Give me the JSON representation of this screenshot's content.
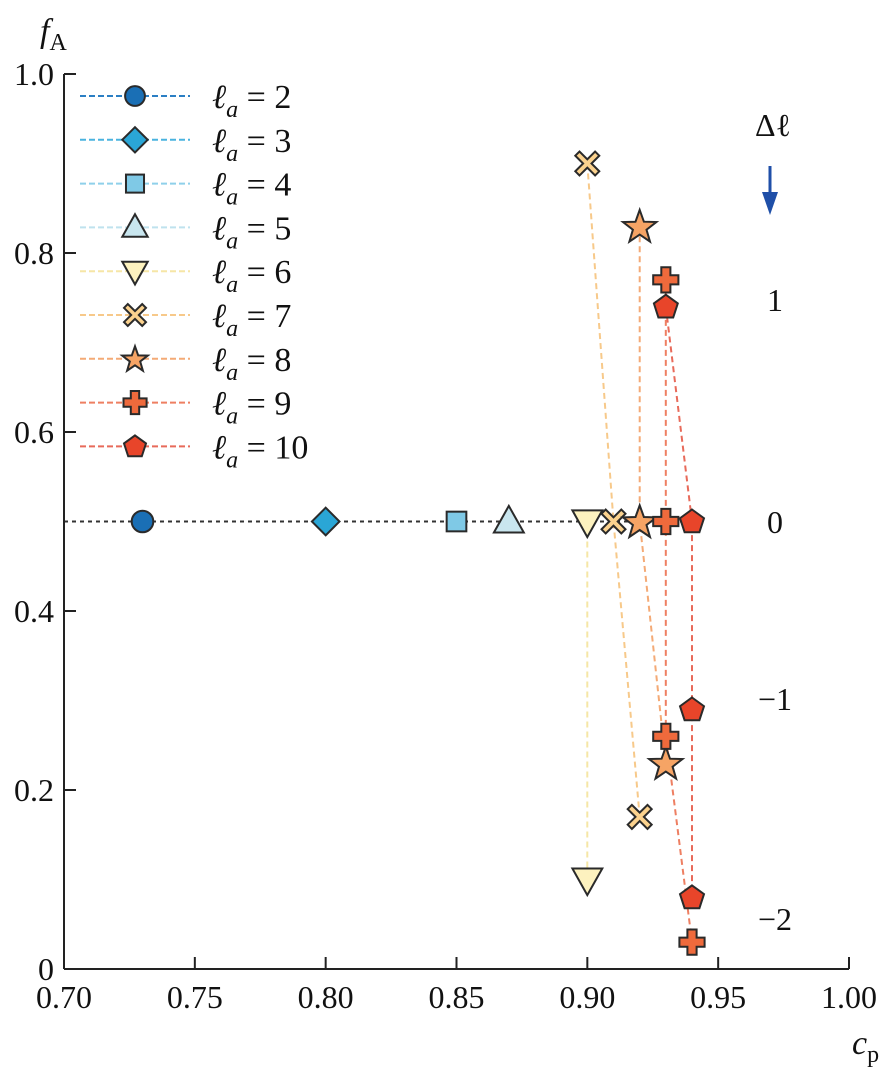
{
  "chart_data": {
    "type": "scatter",
    "xlabel": "c",
    "xlabel_sub": "p",
    "ylabel": "f",
    "ylabel_sub": "A",
    "xlim": [
      0.7,
      1.0
    ],
    "ylim": [
      0.0,
      1.0
    ],
    "xticks": [
      "0.70",
      "0.75",
      "0.80",
      "0.85",
      "0.90",
      "0.95",
      "1.00"
    ],
    "yticks": [
      "0",
      "0.2",
      "0.4",
      "0.6",
      "0.8",
      "1.0"
    ],
    "legend_placement": "top-left",
    "reference_line_y": 0.5,
    "annotation_header": "Δℓ",
    "annotation_arrow_color": "#1f4fa8",
    "annotation_levels": [
      {
        "label": "1",
        "y": 0.77
      },
      {
        "label": "0",
        "y": 0.5
      },
      {
        "label": "−1",
        "y": 0.3
      },
      {
        "label": "−2",
        "y": 0.06
      }
    ],
    "series": [
      {
        "name": "ℓa = 2",
        "a": "2",
        "marker": "circle",
        "color": "#1a6fb5",
        "line": "#2b7fc4",
        "points": [
          {
            "x": 0.73,
            "y": 0.5
          }
        ]
      },
      {
        "name": "ℓa = 3",
        "a": "3",
        "marker": "diamond",
        "color": "#2aa6d6",
        "line": "#4ab3df",
        "points": [
          {
            "x": 0.8,
            "y": 0.5
          }
        ]
      },
      {
        "name": "ℓa = 4",
        "a": "4",
        "marker": "square",
        "color": "#7fc9e6",
        "line": "#8fd0ea",
        "points": [
          {
            "x": 0.85,
            "y": 0.5
          }
        ]
      },
      {
        "name": "ℓa = 5",
        "a": "5",
        "marker": "triangle-up",
        "color": "#c9e6ef",
        "line": "#bfe2ee",
        "points": [
          {
            "x": 0.87,
            "y": 0.5
          }
        ]
      },
      {
        "name": "ℓa = 6",
        "a": "6",
        "marker": "triangle-down",
        "color": "#fdf2bf",
        "line": "#f6e6a6",
        "points": [
          {
            "x": 0.9,
            "y": 0.5
          },
          {
            "x": 0.9,
            "y": 0.1
          }
        ]
      },
      {
        "name": "ℓa = 7",
        "a": "7",
        "marker": "x",
        "color": "#fbd28e",
        "line": "#f7c98a",
        "points": [
          {
            "x": 0.9,
            "y": 0.9
          },
          {
            "x": 0.91,
            "y": 0.5
          },
          {
            "x": 0.92,
            "y": 0.17
          }
        ]
      },
      {
        "name": "ℓa = 8",
        "a": "8",
        "marker": "star",
        "color": "#f6a465",
        "line": "#f4aa76",
        "points": [
          {
            "x": 0.92,
            "y": 0.83
          },
          {
            "x": 0.92,
            "y": 0.5
          },
          {
            "x": 0.93,
            "y": 0.23
          }
        ]
      },
      {
        "name": "ℓa = 9",
        "a": "9",
        "marker": "plus",
        "color": "#ef6a3c",
        "line": "#ee7f62",
        "points": [
          {
            "x": 0.93,
            "y": 0.77
          },
          {
            "x": 0.93,
            "y": 0.5
          },
          {
            "x": 0.93,
            "y": 0.26
          },
          {
            "x": 0.94,
            "y": 0.03
          }
        ]
      },
      {
        "name": "ℓa = 10",
        "a": "10",
        "marker": "pentagon",
        "color": "#e8452a",
        "line": "#e86a5a",
        "points": [
          {
            "x": 0.93,
            "y": 0.74
          },
          {
            "x": 0.94,
            "y": 0.5
          },
          {
            "x": 0.94,
            "y": 0.29
          },
          {
            "x": 0.94,
            "y": 0.08
          }
        ]
      }
    ]
  }
}
